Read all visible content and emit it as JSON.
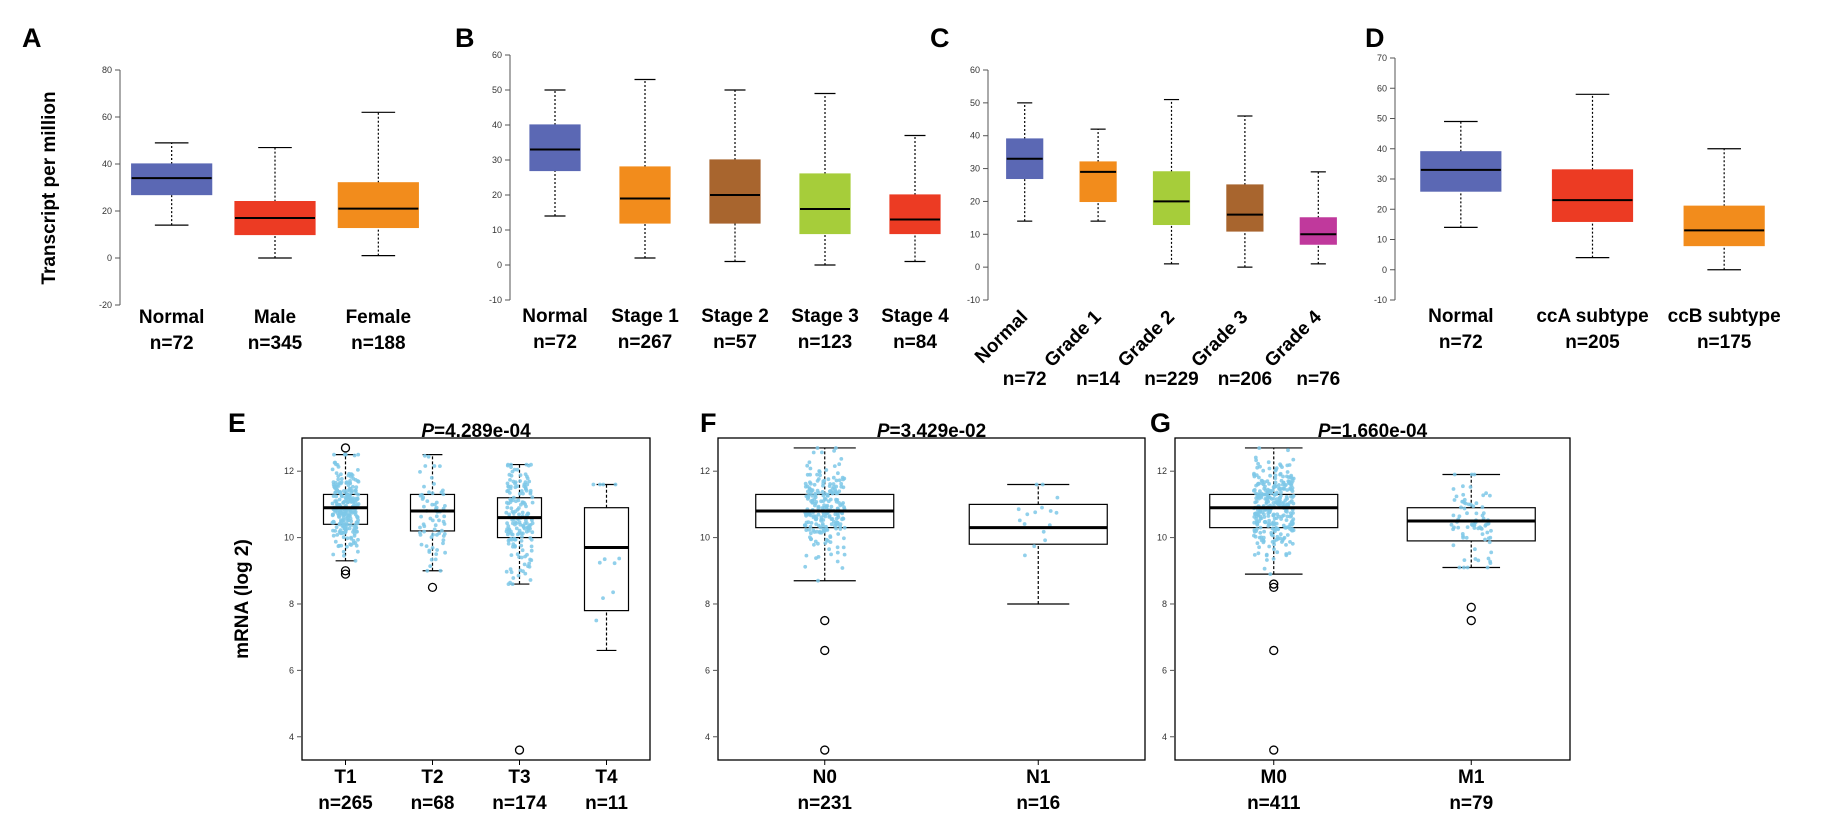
{
  "chart_data": [
    {
      "panel": "A",
      "type": "box",
      "ylabel": "Transcript per million",
      "ylim": [
        -20,
        80
      ],
      "yticks": [
        -20,
        0,
        20,
        40,
        60,
        80
      ],
      "categories": [
        "Normal",
        "Male",
        "Female"
      ],
      "counts": [
        "n=72",
        "n=345",
        "n=188"
      ],
      "colors": [
        "#5b68b4",
        "#ec3b23",
        "#f28c1c"
      ],
      "boxes": [
        {
          "min": 14,
          "q1": 27,
          "median": 34,
          "q3": 40,
          "max": 49
        },
        {
          "min": 0,
          "q1": 10,
          "median": 17,
          "q3": 24,
          "max": 47
        },
        {
          "min": 1,
          "q1": 13,
          "median": 21,
          "q3": 32,
          "max": 62
        }
      ]
    },
    {
      "panel": "B",
      "type": "box",
      "ylim": [
        -10,
        60
      ],
      "yticks": [
        -10,
        0,
        10,
        20,
        30,
        40,
        50,
        60
      ],
      "categories": [
        "Normal",
        "Stage 1",
        "Stage 2",
        "Stage 3",
        "Stage 4"
      ],
      "counts": [
        "n=72",
        "n=267",
        "n=57",
        "n=123",
        "n=84"
      ],
      "colors": [
        "#5b68b4",
        "#f28c1c",
        "#a8652e",
        "#a6cd3a",
        "#ec3b23"
      ],
      "boxes": [
        {
          "min": 14,
          "q1": 27,
          "median": 33,
          "q3": 40,
          "max": 50
        },
        {
          "min": 2,
          "q1": 12,
          "median": 19,
          "q3": 28,
          "max": 53
        },
        {
          "min": 1,
          "q1": 12,
          "median": 20,
          "q3": 30,
          "max": 50
        },
        {
          "min": 0,
          "q1": 9,
          "median": 16,
          "q3": 26,
          "max": 49
        },
        {
          "min": 1,
          "q1": 9,
          "median": 13,
          "q3": 20,
          "max": 37
        }
      ]
    },
    {
      "panel": "C",
      "type": "box",
      "ylim": [
        -10,
        60
      ],
      "yticks": [
        -10,
        0,
        10,
        20,
        30,
        40,
        50,
        60
      ],
      "categories": [
        "Normal",
        "Grade 1",
        "Grade 2",
        "Grade 3",
        "Grade 4"
      ],
      "counts": [
        "n=72",
        "n=14",
        "n=229",
        "n=206",
        "n=76"
      ],
      "colors": [
        "#5b68b4",
        "#f28c1c",
        "#a6cd3a",
        "#a8652e",
        "#c0399c"
      ],
      "boxes": [
        {
          "min": 14,
          "q1": 27,
          "median": 33,
          "q3": 39,
          "max": 50
        },
        {
          "min": 14,
          "q1": 20,
          "median": 29,
          "q3": 32,
          "max": 42
        },
        {
          "min": 1,
          "q1": 13,
          "median": 20,
          "q3": 29,
          "max": 51
        },
        {
          "min": 0,
          "q1": 11,
          "median": 16,
          "q3": 25,
          "max": 46
        },
        {
          "min": 1,
          "q1": 7,
          "median": 10,
          "q3": 15,
          "max": 29
        }
      ]
    },
    {
      "panel": "D",
      "type": "box",
      "ylim": [
        -10,
        70
      ],
      "yticks": [
        -10,
        0,
        10,
        20,
        30,
        40,
        50,
        60,
        70
      ],
      "categories": [
        "Normal",
        "ccA subtype",
        "ccB subtype"
      ],
      "counts": [
        "n=72",
        "n=205",
        "n=175"
      ],
      "colors": [
        "#5b68b4",
        "#ec3b23",
        "#f28c1c"
      ],
      "boxes": [
        {
          "min": 14,
          "q1": 26,
          "median": 33,
          "q3": 39,
          "max": 49
        },
        {
          "min": 4,
          "q1": 16,
          "median": 23,
          "q3": 33,
          "max": 58
        },
        {
          "min": 0,
          "q1": 8,
          "median": 13,
          "q3": 21,
          "max": 40
        }
      ]
    },
    {
      "panel": "E",
      "type": "box",
      "title_p": "P",
      "title_rest": "=4.289e-04",
      "ylabel": "mRNA (log 2)",
      "ylim": [
        3.3,
        13.0
      ],
      "yticks": [
        4,
        6,
        8,
        10,
        12
      ],
      "categories": [
        "T1",
        "T2",
        "T3",
        "T4"
      ],
      "counts": [
        "n=265",
        "n=68",
        "n=174",
        "n=11"
      ],
      "boxes": [
        {
          "min": 9.3,
          "q1": 10.4,
          "median": 10.9,
          "q3": 11.3,
          "max": 12.5,
          "n": 265,
          "outliers": [
            12.7,
            9.0,
            8.9
          ]
        },
        {
          "min": 9.0,
          "q1": 10.2,
          "median": 10.8,
          "q3": 11.3,
          "max": 12.5,
          "n": 68,
          "outliers": [
            8.5
          ]
        },
        {
          "min": 8.6,
          "q1": 10.0,
          "median": 10.6,
          "q3": 11.2,
          "max": 12.2,
          "n": 174,
          "outliers": [
            3.6
          ]
        },
        {
          "min": 6.6,
          "q1": 7.8,
          "median": 9.7,
          "q3": 10.9,
          "max": 11.6,
          "n": 11,
          "outliers": []
        }
      ]
    },
    {
      "panel": "F",
      "type": "box",
      "title_p": "P",
      "title_rest": "=3.429e-02",
      "ylim": [
        3.3,
        13.0
      ],
      "yticks": [
        4,
        6,
        8,
        10,
        12
      ],
      "categories": [
        "N0",
        "N1"
      ],
      "counts": [
        "n=231",
        "n=16"
      ],
      "boxes": [
        {
          "min": 8.7,
          "q1": 10.3,
          "median": 10.8,
          "q3": 11.3,
          "max": 12.7,
          "n": 231,
          "outliers": [
            7.5,
            6.6,
            3.6
          ]
        },
        {
          "min": 8.0,
          "q1": 9.8,
          "median": 10.3,
          "q3": 11.0,
          "max": 11.6,
          "n": 16,
          "outliers": []
        }
      ]
    },
    {
      "panel": "G",
      "type": "box",
      "title_p": "P",
      "title_rest": "=1.660e-04",
      "ylim": [
        3.3,
        13.0
      ],
      "yticks": [
        4,
        6,
        8,
        10,
        12
      ],
      "categories": [
        "M0",
        "M1"
      ],
      "counts": [
        "n=411",
        "n=79"
      ],
      "boxes": [
        {
          "min": 8.9,
          "q1": 10.3,
          "median": 10.9,
          "q3": 11.3,
          "max": 12.7,
          "n": 411,
          "outliers": [
            8.6,
            8.5,
            6.6,
            3.6
          ]
        },
        {
          "min": 9.1,
          "q1": 9.9,
          "median": 10.5,
          "q3": 10.9,
          "max": 11.9,
          "n": 79,
          "outliers": [
            7.9,
            7.5
          ]
        }
      ]
    }
  ]
}
